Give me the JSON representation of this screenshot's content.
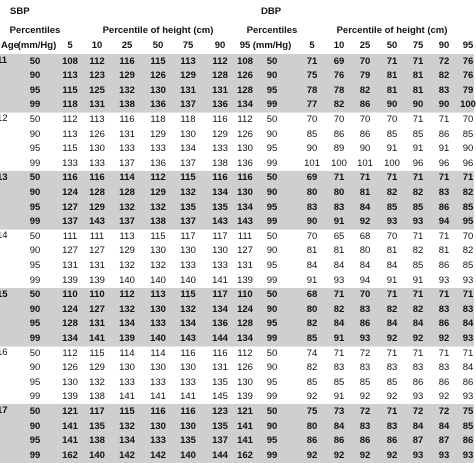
{
  "header": {
    "age": "Age",
    "sbp": {
      "title": "SBP",
      "percentiles": "Percentiles",
      "unit": "(mm/Hg)",
      "height_label": "Percentile of height (cm)",
      "heights": [
        5,
        10,
        25,
        50,
        75,
        90,
        95
      ]
    },
    "dbp": {
      "title": "DBP",
      "percentiles": "Percentiles",
      "unit": "(mm/Hg)",
      "height_label": "Percentile of height (cm)",
      "heights": [
        5,
        10,
        25,
        50,
        75,
        90,
        95
      ]
    }
  },
  "groups": [
    {
      "age": "11",
      "shaded": true,
      "rows": [
        {
          "sbp_pct": 50,
          "sbp": [
            108,
            112,
            116,
            115,
            113,
            112,
            108
          ],
          "dbp_pct": 50,
          "dbp": [
            71,
            69,
            70,
            71,
            71,
            72,
            76
          ]
        },
        {
          "sbp_pct": 90,
          "sbp": [
            113,
            123,
            129,
            126,
            129,
            128,
            126
          ],
          "dbp_pct": 90,
          "dbp": [
            75,
            76,
            79,
            81,
            81,
            82,
            76
          ]
        },
        {
          "sbp_pct": 95,
          "sbp": [
            115,
            125,
            132,
            130,
            131,
            131,
            128
          ],
          "dbp_pct": 95,
          "dbp": [
            78,
            78,
            82,
            81,
            81,
            83,
            79
          ]
        },
        {
          "sbp_pct": 99,
          "sbp": [
            118,
            131,
            138,
            136,
            137,
            136,
            134
          ],
          "dbp_pct": 99,
          "dbp": [
            77,
            82,
            86,
            90,
            90,
            90,
            100
          ]
        }
      ]
    },
    {
      "age": "12",
      "shaded": false,
      "rows": [
        {
          "sbp_pct": 50,
          "sbp": [
            112,
            113,
            116,
            118,
            118,
            116,
            112
          ],
          "dbp_pct": 50,
          "dbp": [
            70,
            70,
            70,
            70,
            71,
            71,
            70
          ]
        },
        {
          "sbp_pct": 90,
          "sbp": [
            113,
            126,
            131,
            129,
            130,
            129,
            126
          ],
          "dbp_pct": 90,
          "dbp": [
            85,
            86,
            86,
            85,
            85,
            86,
            85
          ]
        },
        {
          "sbp_pct": 95,
          "sbp": [
            115,
            130,
            133,
            133,
            134,
            133,
            130
          ],
          "dbp_pct": 95,
          "dbp": [
            90,
            89,
            90,
            91,
            91,
            91,
            90
          ]
        },
        {
          "sbp_pct": 99,
          "sbp": [
            133,
            133,
            137,
            136,
            137,
            138,
            136
          ],
          "dbp_pct": 99,
          "dbp": [
            101,
            100,
            101,
            100,
            96,
            96,
            96
          ]
        }
      ]
    },
    {
      "age": "13",
      "shaded": true,
      "rows": [
        {
          "sbp_pct": 50,
          "sbp": [
            116,
            116,
            114,
            112,
            115,
            116,
            116
          ],
          "dbp_pct": 50,
          "dbp": [
            69,
            71,
            71,
            71,
            71,
            71,
            71
          ]
        },
        {
          "sbp_pct": 90,
          "sbp": [
            124,
            128,
            128,
            129,
            132,
            134,
            130
          ],
          "dbp_pct": 90,
          "dbp": [
            80,
            80,
            81,
            82,
            82,
            83,
            82
          ]
        },
        {
          "sbp_pct": 95,
          "sbp": [
            127,
            129,
            132,
            132,
            135,
            135,
            134
          ],
          "dbp_pct": 95,
          "dbp": [
            83,
            83,
            84,
            85,
            85,
            86,
            85
          ]
        },
        {
          "sbp_pct": 99,
          "sbp": [
            137,
            143,
            137,
            138,
            137,
            143,
            143
          ],
          "dbp_pct": 99,
          "dbp": [
            90,
            91,
            92,
            93,
            93,
            94,
            95
          ]
        }
      ]
    },
    {
      "age": "14",
      "shaded": false,
      "rows": [
        {
          "sbp_pct": 50,
          "sbp": [
            111,
            111,
            113,
            115,
            117,
            117,
            111
          ],
          "dbp_pct": 50,
          "dbp": [
            70,
            65,
            68,
            70,
            71,
            71,
            70
          ]
        },
        {
          "sbp_pct": 90,
          "sbp": [
            127,
            127,
            129,
            130,
            130,
            130,
            127
          ],
          "dbp_pct": 90,
          "dbp": [
            81,
            81,
            80,
            81,
            82,
            81,
            82
          ]
        },
        {
          "sbp_pct": 95,
          "sbp": [
            131,
            131,
            132,
            132,
            133,
            133,
            131
          ],
          "dbp_pct": 95,
          "dbp": [
            84,
            84,
            84,
            84,
            85,
            86,
            85
          ]
        },
        {
          "sbp_pct": 99,
          "sbp": [
            139,
            139,
            140,
            140,
            140,
            141,
            139
          ],
          "dbp_pct": 99,
          "dbp": [
            91,
            93,
            94,
            91,
            91,
            93,
            93
          ]
        }
      ]
    },
    {
      "age": "15",
      "shaded": true,
      "rows": [
        {
          "sbp_pct": 50,
          "sbp": [
            110,
            110,
            112,
            113,
            115,
            117,
            110
          ],
          "dbp_pct": 50,
          "dbp": [
            68,
            71,
            70,
            71,
            71,
            71,
            71
          ]
        },
        {
          "sbp_pct": 90,
          "sbp": [
            124,
            127,
            132,
            130,
            132,
            134,
            124
          ],
          "dbp_pct": 90,
          "dbp": [
            80,
            82,
            83,
            82,
            82,
            83,
            83
          ]
        },
        {
          "sbp_pct": 95,
          "sbp": [
            128,
            131,
            134,
            133,
            134,
            136,
            128
          ],
          "dbp_pct": 95,
          "dbp": [
            82,
            84,
            86,
            84,
            84,
            86,
            84
          ]
        },
        {
          "sbp_pct": 99,
          "sbp": [
            134,
            141,
            139,
            140,
            143,
            144,
            134
          ],
          "dbp_pct": 99,
          "dbp": [
            85,
            91,
            93,
            92,
            92,
            92,
            93
          ]
        }
      ]
    },
    {
      "age": "16",
      "shaded": false,
      "rows": [
        {
          "sbp_pct": 50,
          "sbp": [
            112,
            115,
            114,
            114,
            116,
            116,
            112
          ],
          "dbp_pct": 50,
          "dbp": [
            74,
            71,
            72,
            71,
            71,
            71,
            71
          ]
        },
        {
          "sbp_pct": 90,
          "sbp": [
            126,
            129,
            130,
            130,
            130,
            131,
            126
          ],
          "dbp_pct": 90,
          "dbp": [
            82,
            83,
            83,
            83,
            83,
            83,
            84
          ]
        },
        {
          "sbp_pct": 95,
          "sbp": [
            130,
            132,
            133,
            133,
            133,
            135,
            130
          ],
          "dbp_pct": 95,
          "dbp": [
            85,
            85,
            85,
            85,
            86,
            86,
            86
          ]
        },
        {
          "sbp_pct": 99,
          "sbp": [
            139,
            138,
            141,
            141,
            141,
            145,
            139
          ],
          "dbp_pct": 99,
          "dbp": [
            92,
            91,
            92,
            92,
            93,
            92,
            93
          ]
        }
      ]
    },
    {
      "age": "17",
      "shaded": true,
      "rows": [
        {
          "sbp_pct": 50,
          "sbp": [
            121,
            117,
            115,
            116,
            116,
            123,
            121
          ],
          "dbp_pct": 50,
          "dbp": [
            75,
            73,
            72,
            71,
            72,
            72,
            75
          ]
        },
        {
          "sbp_pct": 90,
          "sbp": [
            141,
            135,
            132,
            130,
            130,
            135,
            141
          ],
          "dbp_pct": 90,
          "dbp": [
            80,
            84,
            83,
            83,
            84,
            84,
            85
          ]
        },
        {
          "sbp_pct": 95,
          "sbp": [
            141,
            138,
            134,
            133,
            135,
            137,
            141
          ],
          "dbp_pct": 95,
          "dbp": [
            86,
            86,
            86,
            86,
            87,
            87,
            86
          ]
        },
        {
          "sbp_pct": 99,
          "sbp": [
            162,
            140,
            142,
            142,
            140,
            144,
            162
          ],
          "dbp_pct": 99,
          "dbp": [
            92,
            92,
            92,
            92,
            93,
            93,
            93
          ]
        }
      ]
    }
  ]
}
